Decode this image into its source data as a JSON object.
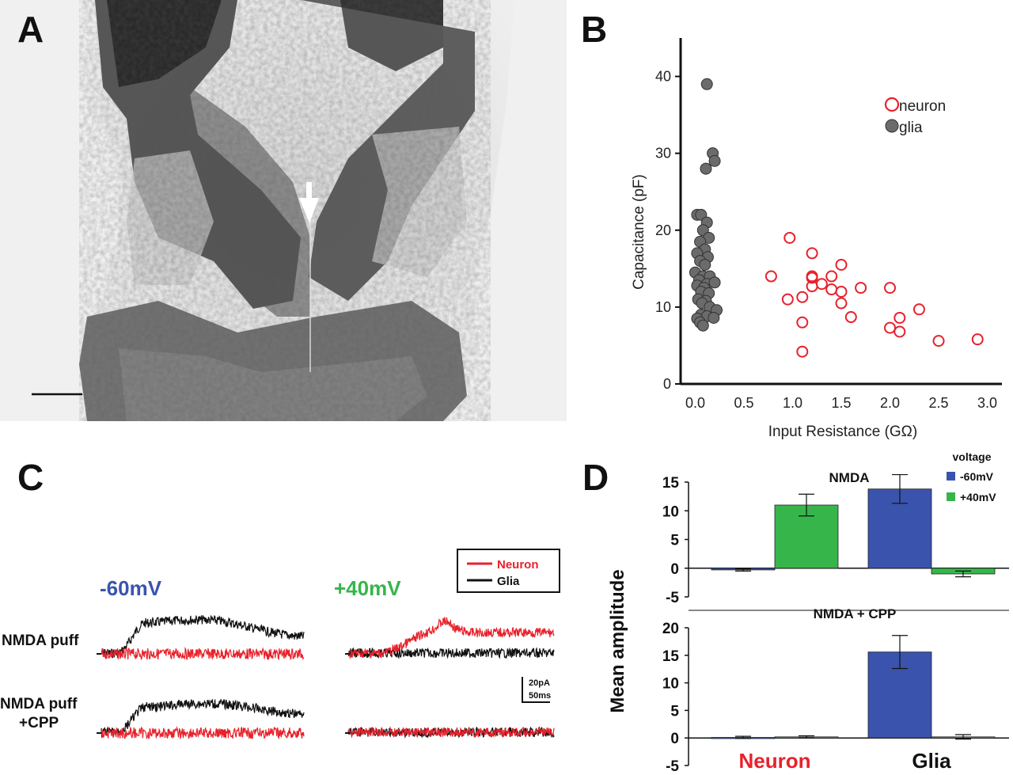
{
  "panels": {
    "a": {
      "letter": "A",
      "arrow": "arrow-down-icon",
      "scale_bar": "scale-bar"
    },
    "b": {
      "letter": "B"
    },
    "c": {
      "letter": "C",
      "voltage_left": "-60mV",
      "voltage_right": "+40mV",
      "row1_label": "NMDA puff",
      "row2_label_line1": "NMDA puff",
      "row2_label_line2": "+CPP",
      "legend_neuron": "Neuron",
      "legend_glia": "Glia",
      "scale_current": "20pA",
      "scale_time": "50ms"
    },
    "d": {
      "letter": "D"
    }
  },
  "colors": {
    "neuron": "#e8212b",
    "glia": "#111111",
    "neg60": "#3a54ad",
    "pos40": "#36b64a",
    "glia_fill": "#6b6b6b"
  },
  "chart_data": [
    {
      "id": "B",
      "type": "scatter",
      "xlabel": "Input Resistance (GΩ)",
      "ylabel": "Capacitance (pF)",
      "xlim": [
        -0.15,
        3.15
      ],
      "ylim": [
        0,
        45
      ],
      "xticks": [
        "0.0",
        "0.5",
        "1.0",
        "1.5",
        "2.0",
        "2.5",
        "3.0"
      ],
      "yticks": [
        "0",
        "10",
        "20",
        "30",
        "40"
      ],
      "legend": [
        "neuron",
        "glia"
      ],
      "series": [
        {
          "name": "neuron",
          "points": [
            [
              0.78,
              14
            ],
            [
              0.97,
              19
            ],
            [
              0.95,
              11
            ],
            [
              1.1,
              11.3
            ],
            [
              1.1,
              8
            ],
            [
              1.1,
              4.2
            ],
            [
              1.2,
              17
            ],
            [
              1.2,
              14
            ],
            [
              1.2,
              13.8
            ],
            [
              1.2,
              12.7
            ],
            [
              1.3,
              13
            ],
            [
              1.4,
              14
            ],
            [
              1.4,
              12.3
            ],
            [
              1.5,
              15.5
            ],
            [
              1.5,
              12
            ],
            [
              1.5,
              10.5
            ],
            [
              1.6,
              8.7
            ],
            [
              1.7,
              12.5
            ],
            [
              2.0,
              12.5
            ],
            [
              2.0,
              7.3
            ],
            [
              2.1,
              8.6
            ],
            [
              2.1,
              6.8
            ],
            [
              2.3,
              9.7
            ],
            [
              2.5,
              5.6
            ],
            [
              2.9,
              5.8
            ]
          ]
        },
        {
          "name": "glia",
          "points": [
            [
              0.12,
              39
            ],
            [
              0.18,
              30
            ],
            [
              0.2,
              29
            ],
            [
              0.11,
              28
            ],
            [
              0.02,
              22
            ],
            [
              0.06,
              22
            ],
            [
              0.12,
              21
            ],
            [
              0.08,
              20
            ],
            [
              0.14,
              19
            ],
            [
              0.05,
              18.5
            ],
            [
              0.1,
              17.5
            ],
            [
              0.02,
              17
            ],
            [
              0.13,
              16.5
            ],
            [
              0.05,
              16
            ],
            [
              0.1,
              15.5
            ],
            [
              0.0,
              14.5
            ],
            [
              0.08,
              14
            ],
            [
              0.15,
              14
            ],
            [
              0.04,
              13.5
            ],
            [
              0.12,
              13
            ],
            [
              0.2,
              13.2
            ],
            [
              0.02,
              12.8
            ],
            [
              0.09,
              12.5
            ],
            [
              0.06,
              12
            ],
            [
              0.14,
              11.8
            ],
            [
              0.03,
              11
            ],
            [
              0.11,
              10.8
            ],
            [
              0.07,
              10.5
            ],
            [
              0.15,
              10
            ],
            [
              0.06,
              9
            ],
            [
              0.12,
              8.8
            ],
            [
              0.22,
              9.6
            ],
            [
              0.19,
              8.6
            ],
            [
              0.02,
              8.5
            ],
            [
              0.05,
              8
            ],
            [
              0.08,
              7.6
            ]
          ]
        }
      ]
    },
    {
      "id": "D-top",
      "type": "bar",
      "title": "NMDA",
      "ylabel": "Mean amplitude",
      "ylim": [
        -5,
        15
      ],
      "yticks": [
        "15",
        "10",
        "5",
        "0",
        "-5"
      ],
      "categories": [
        "Neuron",
        "Glia"
      ],
      "legend_title": "voltage",
      "series": [
        {
          "name": "-60mV",
          "values": [
            -0.3,
            13.8
          ],
          "errors": [
            0.2,
            2.5
          ]
        },
        {
          "name": "+40mV",
          "values": [
            11.0,
            -1.0
          ],
          "errors": [
            1.9,
            0.5
          ]
        }
      ]
    },
    {
      "id": "D-bottom",
      "type": "bar",
      "title": "NMDA + CPP",
      "ylabel": "Mean amplitude",
      "ylim": [
        -5,
        20
      ],
      "yticks": [
        "20",
        "15",
        "10",
        "5",
        "0",
        "-5"
      ],
      "categories": [
        "Neuron",
        "Glia"
      ],
      "series": [
        {
          "name": "-60mV",
          "values": [
            0.1,
            15.6
          ],
          "errors": [
            0.2,
            3.0
          ]
        },
        {
          "name": "+40mV",
          "values": [
            0.2,
            0.2
          ],
          "errors": [
            0.2,
            0.4
          ]
        }
      ]
    }
  ]
}
